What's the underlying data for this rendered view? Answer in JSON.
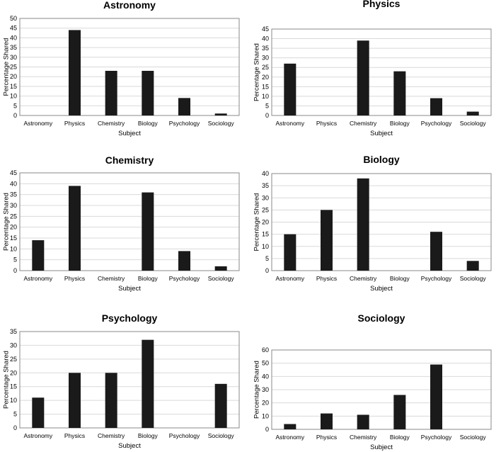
{
  "chart_data": [
    {
      "type": "bar",
      "title": "Astronomy",
      "xlabel": "Subject",
      "ylabel": "Percentage Shared",
      "categories": [
        "Astronomy",
        "Physics",
        "Chemistry",
        "Biology",
        "Psychology",
        "Sociology"
      ],
      "values": [
        0,
        44,
        23,
        23,
        9,
        1
      ],
      "ylim": [
        0,
        50
      ],
      "ytick_step": 5,
      "grid": true
    },
    {
      "type": "bar",
      "title": "Physics",
      "xlabel": "Subject",
      "ylabel": "Percentage Shared",
      "categories": [
        "Astronomy",
        "Physics",
        "Chemistry",
        "Biology",
        "Psychology",
        "Sociology"
      ],
      "values": [
        27,
        0,
        39,
        23,
        9,
        2
      ],
      "ylim": [
        0,
        45
      ],
      "ytick_step": 5,
      "grid": true
    },
    {
      "type": "bar",
      "title": "Chemistry",
      "xlabel": "Subject",
      "ylabel": "Percentage Shared",
      "categories": [
        "Astronomy",
        "Physics",
        "Chemistry",
        "Biology",
        "Psychology",
        "Sociology"
      ],
      "values": [
        14,
        39,
        0,
        36,
        9,
        2
      ],
      "ylim": [
        0,
        45
      ],
      "ytick_step": 5,
      "grid": true
    },
    {
      "type": "bar",
      "title": "Biology",
      "xlabel": "Subject",
      "ylabel": "Percentage Shared",
      "categories": [
        "Astronomy",
        "Physics",
        "Chemistry",
        "Biology",
        "Psychology",
        "Sociology"
      ],
      "values": [
        15,
        25,
        38,
        0,
        16,
        4
      ],
      "ylim": [
        0,
        40
      ],
      "ytick_step": 5,
      "grid": true
    },
    {
      "type": "bar",
      "title": "Psychology",
      "xlabel": "Subject",
      "ylabel": "Percentage Shared",
      "categories": [
        "Astronomy",
        "Physics",
        "Chemistry",
        "Biology",
        "Psychology",
        "Sociology"
      ],
      "values": [
        11,
        20,
        20,
        32,
        0,
        16
      ],
      "ylim": [
        0,
        35
      ],
      "ytick_step": 5,
      "grid": true
    },
    {
      "type": "bar",
      "title": "Sociology",
      "xlabel": "Subject",
      "ylabel": "Percentage Shared",
      "categories": [
        "Astronomy",
        "Physics",
        "Chemistry",
        "Biology",
        "Psychology",
        "Sociology"
      ],
      "values": [
        4,
        12,
        11,
        26,
        49,
        0
      ],
      "ylim": [
        0,
        60
      ],
      "ytick_step": 10,
      "grid": true
    }
  ],
  "colors": {
    "bar": "#1a1a1a",
    "grid": "#d9d9d9",
    "axis": "#888888"
  }
}
